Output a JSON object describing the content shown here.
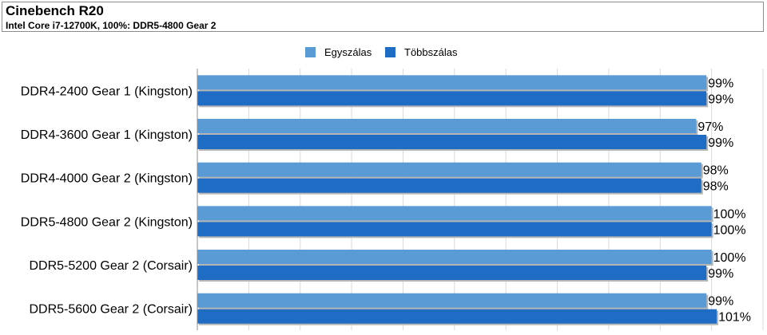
{
  "chart_data": {
    "type": "bar",
    "orientation": "horizontal",
    "title": "Cinebench R20",
    "subtitle": "Intel Core i7-12700K, 100%: DDR5-4800 Gear 2",
    "xlabel": "",
    "ylabel": "",
    "categories": [
      "DDR4-2400 Gear 1 (Kingston)",
      "DDR4-3600 Gear 1 (Kingston)",
      "DDR4-4000 Gear 2 (Kingston)",
      "DDR5-4800 Gear 2 (Kingston)",
      "DDR5-5200 Gear 2 (Corsair)",
      "DDR5-5600 Gear 2 (Corsair)"
    ],
    "series": [
      {
        "name": "Egyszálas",
        "color": "#5b9bd5",
        "values": [
          99,
          97,
          98,
          100,
          100,
          99
        ],
        "labels": [
          "99%",
          "97%",
          "98%",
          "100%",
          "100%",
          "99%"
        ]
      },
      {
        "name": "Többszálas",
        "color": "#1f6cc4",
        "values": [
          99,
          99,
          98,
          100,
          99,
          101
        ],
        "labels": [
          "99%",
          "99%",
          "98%",
          "100%",
          "99%",
          "101%"
        ]
      }
    ],
    "xlim": [
      0,
      110
    ],
    "grid": true,
    "legend": "top-center"
  }
}
